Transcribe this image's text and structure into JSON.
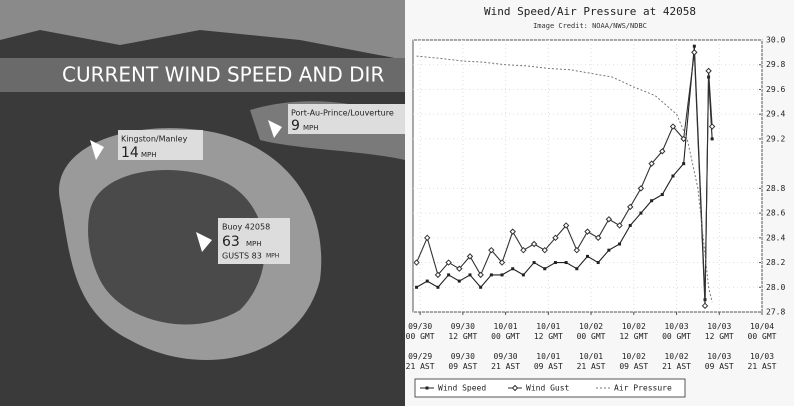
{
  "map": {
    "title": "CURRENT WIND SPEED AND DIR",
    "stations": [
      {
        "name": "Kingston/Manley",
        "speed": "14",
        "unit": "MPH"
      },
      {
        "name": "Port-Au-Prince/Louverture",
        "speed": "9",
        "unit": "MPH"
      },
      {
        "name": "Buoy 42058",
        "speed": "63",
        "unit": "MPH",
        "gusts": "GUSTS 83",
        "gusts_unit": "MPH"
      }
    ]
  },
  "chart_data": {
    "type": "line",
    "title": "Wind Speed/Air Pressure at 42058",
    "subtitle": "Image Credit: NOAA/NWS/NDBC",
    "xlim": [
      -2,
      96
    ],
    "xticks": [
      {
        "value": 0,
        "label": "09/30 00 GMT"
      },
      {
        "value": 12,
        "label": "09/30 12 GMT"
      },
      {
        "value": 24,
        "label": "10/01 00 GMT"
      },
      {
        "value": 36,
        "label": "10/01 12 GMT"
      },
      {
        "value": 48,
        "label": "10/02 00 GMT"
      },
      {
        "value": 60,
        "label": "10/02 12 GMT"
      },
      {
        "value": 72,
        "label": "10/03 00 GMT"
      },
      {
        "value": 84,
        "label": "10/03 12 GMT"
      },
      {
        "value": 96,
        "label": "10/04 00 GMT"
      }
    ],
    "xtick_labels_2": [
      "09/29 21 AST",
      "09/30 09 AST",
      "09/30 21 AST",
      "10/01 09 AST",
      "10/01 21 AST",
      "10/02 09 AST",
      "10/02 21 AST",
      "10/03 09 AST",
      "10/03 21 AST"
    ],
    "ylim": [
      27.8,
      30.0
    ],
    "yticks": [
      27.8,
      {
        "value": 28,
        "label": "28.0"
      },
      28.2,
      28.4,
      28.6,
      28.8,
      29.2,
      29.4,
      29.6,
      29.8,
      {
        "value": 30,
        "label": "30.0"
      }
    ],
    "grid": true,
    "series": [
      {
        "name": "Wind Speed",
        "color": "#222222",
        "marker": "square",
        "x": [
          -1,
          2,
          5,
          8,
          11,
          14,
          17,
          20,
          23,
          26,
          29,
          32,
          35,
          38,
          41,
          44,
          47,
          50,
          53,
          56,
          59,
          62,
          65,
          68,
          71,
          74,
          77,
          80,
          81,
          82
        ],
        "values": [
          28.0,
          28.05,
          28.0,
          28.1,
          28.05,
          28.1,
          28.0,
          28.1,
          28.1,
          28.15,
          28.1,
          28.2,
          28.15,
          28.2,
          28.2,
          28.15,
          28.25,
          28.2,
          28.3,
          28.35,
          28.5,
          28.6,
          28.7,
          28.75,
          28.9,
          29.0,
          29.95,
          27.9,
          29.7,
          29.2
        ]
      },
      {
        "name": "Wind Gust",
        "color": "#333333",
        "marker": "diamond",
        "x": [
          -1,
          2,
          5,
          8,
          11,
          14,
          17,
          20,
          23,
          26,
          29,
          32,
          35,
          38,
          41,
          44,
          47,
          50,
          53,
          56,
          59,
          62,
          65,
          68,
          71,
          74,
          77,
          80,
          81,
          82
        ],
        "values": [
          28.2,
          28.4,
          28.1,
          28.2,
          28.15,
          28.25,
          28.1,
          28.3,
          28.2,
          28.45,
          28.3,
          28.35,
          28.3,
          28.4,
          28.5,
          28.3,
          28.45,
          28.4,
          28.55,
          28.5,
          28.65,
          28.8,
          29.0,
          29.1,
          29.3,
          29.2,
          29.9,
          27.85,
          29.75,
          29.3
        ]
      },
      {
        "name": "Air Pressure",
        "color": "#777777",
        "marker": "none",
        "x": [
          -1,
          6,
          12,
          18,
          24,
          30,
          36,
          42,
          48,
          54,
          60,
          66,
          72,
          75,
          78,
          81,
          82
        ],
        "values": [
          29.87,
          29.85,
          29.83,
          29.82,
          29.8,
          29.79,
          29.77,
          29.76,
          29.73,
          29.7,
          29.62,
          29.55,
          29.4,
          29.2,
          28.8,
          28.0,
          27.88
        ]
      }
    ]
  }
}
